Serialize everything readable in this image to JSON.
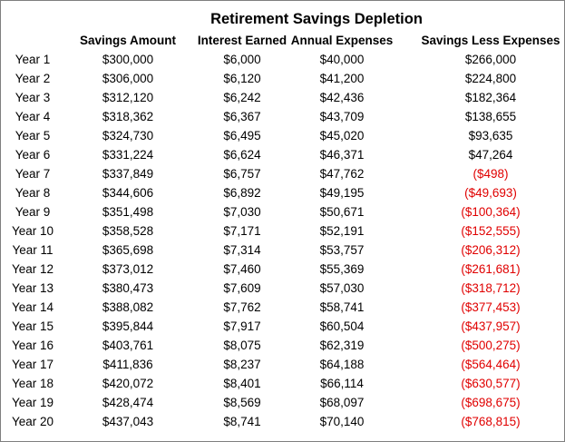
{
  "table": {
    "title": "Retirement Savings Depletion",
    "columns": [
      "Savings Amount",
      "Interest Earned",
      "Annual Expenses",
      "Savings Less Expenses"
    ],
    "rows": [
      [
        "Year 1",
        "$300,000",
        "$6,000",
        "$40,000",
        "$266,000"
      ],
      [
        "Year 2",
        "$306,000",
        "$6,120",
        "$41,200",
        "$224,800"
      ],
      [
        "Year 3",
        "$312,120",
        "$6,242",
        "$42,436",
        "$182,364"
      ],
      [
        "Year 4",
        "$318,362",
        "$6,367",
        "$43,709",
        "$138,655"
      ],
      [
        "Year 5",
        "$324,730",
        "$6,495",
        "$45,020",
        "$93,635"
      ],
      [
        "Year 6",
        "$331,224",
        "$6,624",
        "$46,371",
        "$47,264"
      ],
      [
        "Year 7",
        "$337,849",
        "$6,757",
        "$47,762",
        "($498)"
      ],
      [
        "Year 8",
        "$344,606",
        "$6,892",
        "$49,195",
        "($49,693)"
      ],
      [
        "Year 9",
        "$351,498",
        "$7,030",
        "$50,671",
        "($100,364)"
      ],
      [
        "Year 10",
        "$358,528",
        "$7,171",
        "$52,191",
        "($152,555)"
      ],
      [
        "Year 11",
        "$365,698",
        "$7,314",
        "$53,757",
        "($206,312)"
      ],
      [
        "Year 12",
        "$373,012",
        "$7,460",
        "$55,369",
        "($261,681)"
      ],
      [
        "Year 13",
        "$380,473",
        "$7,609",
        "$57,030",
        "($318,712)"
      ],
      [
        "Year 14",
        "$388,082",
        "$7,762",
        "$58,741",
        "($377,453)"
      ],
      [
        "Year 15",
        "$395,844",
        "$7,917",
        "$60,504",
        "($437,957)"
      ],
      [
        "Year 16",
        "$403,761",
        "$8,075",
        "$62,319",
        "($500,275)"
      ],
      [
        "Year 17",
        "$411,836",
        "$8,237",
        "$64,188",
        "($564,464)"
      ],
      [
        "Year 18",
        "$420,072",
        "$8,401",
        "$66,114",
        "($630,577)"
      ],
      [
        "Year 19",
        "$428,474",
        "$8,569",
        "$68,097",
        "($698,675)"
      ],
      [
        "Year 20",
        "$437,043",
        "$8,741",
        "$70,140",
        "($768,815)"
      ]
    ]
  }
}
